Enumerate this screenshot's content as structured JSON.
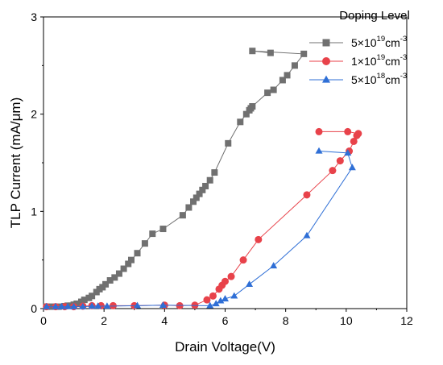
{
  "chart_data": {
    "type": "scatter",
    "xlabel": "Drain Voltage(V)",
    "ylabel": "TLP Current (mA/μm)",
    "xlim": [
      0,
      12
    ],
    "ylim": [
      0,
      3
    ],
    "x_ticks": [
      "0",
      "2",
      "4",
      "6",
      "8",
      "10",
      "12"
    ],
    "y_ticks": [
      "0",
      "1",
      "2",
      "3"
    ],
    "legend_title": "Doping Level",
    "legend_position": "top-right",
    "grid": false,
    "series": [
      {
        "label_parts": {
          "mant": "5×10",
          "exp": "19",
          "unit": "cm",
          "uexp": "-3"
        },
        "color": "#707070",
        "marker": "square",
        "points": [
          [
            0.1,
            0.02
          ],
          [
            0.3,
            0.02
          ],
          [
            0.5,
            0.02
          ],
          [
            0.7,
            0.025
          ],
          [
            0.8,
            0.03
          ],
          [
            0.9,
            0.03
          ],
          [
            1.0,
            0.04
          ],
          [
            1.1,
            0.05
          ],
          [
            1.25,
            0.07
          ],
          [
            1.35,
            0.09
          ],
          [
            1.5,
            0.11
          ],
          [
            1.6,
            0.13
          ],
          [
            1.75,
            0.17
          ],
          [
            1.85,
            0.2
          ],
          [
            1.95,
            0.22
          ],
          [
            2.05,
            0.25
          ],
          [
            2.2,
            0.29
          ],
          [
            2.35,
            0.32
          ],
          [
            2.5,
            0.36
          ],
          [
            2.65,
            0.41
          ],
          [
            2.8,
            0.46
          ],
          [
            2.9,
            0.5
          ],
          [
            3.1,
            0.57
          ],
          [
            3.35,
            0.67
          ],
          [
            3.6,
            0.77
          ],
          [
            3.95,
            0.82
          ],
          [
            4.6,
            0.96
          ],
          [
            4.8,
            1.04
          ],
          [
            4.95,
            1.1
          ],
          [
            5.05,
            1.14
          ],
          [
            5.15,
            1.18
          ],
          [
            5.25,
            1.22
          ],
          [
            5.35,
            1.26
          ],
          [
            5.5,
            1.32
          ],
          [
            5.65,
            1.4
          ],
          [
            6.1,
            1.7
          ],
          [
            6.5,
            1.92
          ],
          [
            6.7,
            2.0
          ],
          [
            6.8,
            2.04
          ],
          [
            6.85,
            2.06
          ],
          [
            6.9,
            2.08
          ],
          [
            7.4,
            2.22
          ],
          [
            7.6,
            2.25
          ],
          [
            7.9,
            2.35
          ],
          [
            8.05,
            2.4
          ],
          [
            8.3,
            2.5
          ],
          [
            8.6,
            2.62
          ],
          [
            6.9,
            2.65
          ],
          [
            7.5,
            2.63
          ]
        ]
      },
      {
        "label_parts": {
          "mant": "1×10",
          "exp": "19",
          "unit": "cm",
          "uexp": "-3"
        },
        "color": "#e8424a",
        "marker": "circle",
        "points": [
          [
            0.1,
            0.02
          ],
          [
            0.4,
            0.02
          ],
          [
            0.7,
            0.02
          ],
          [
            1.0,
            0.02
          ],
          [
            1.3,
            0.025
          ],
          [
            1.6,
            0.03
          ],
          [
            1.9,
            0.03
          ],
          [
            2.3,
            0.03
          ],
          [
            3.0,
            0.03
          ],
          [
            4.0,
            0.035
          ],
          [
            4.5,
            0.03
          ],
          [
            5.0,
            0.035
          ],
          [
            5.4,
            0.09
          ],
          [
            5.6,
            0.13
          ],
          [
            5.8,
            0.2
          ],
          [
            5.9,
            0.24
          ],
          [
            6.0,
            0.28
          ],
          [
            6.2,
            0.33
          ],
          [
            6.6,
            0.5
          ],
          [
            7.1,
            0.71
          ],
          [
            8.7,
            1.17
          ],
          [
            9.55,
            1.42
          ],
          [
            9.8,
            1.52
          ],
          [
            10.1,
            1.62
          ],
          [
            10.25,
            1.72
          ],
          [
            10.35,
            1.78
          ],
          [
            10.4,
            1.8
          ],
          [
            10.05,
            1.82
          ],
          [
            9.1,
            1.82
          ]
        ]
      },
      {
        "label_parts": {
          "mant": "5×10",
          "exp": "18",
          "unit": "cm",
          "uexp": "-3"
        },
        "color": "#2f6fd6",
        "marker": "triangle",
        "points": [
          [
            0.1,
            0.02
          ],
          [
            0.4,
            0.02
          ],
          [
            0.6,
            0.02
          ],
          [
            0.8,
            0.02
          ],
          [
            1.0,
            0.02
          ],
          [
            1.3,
            0.02
          ],
          [
            1.6,
            0.025
          ],
          [
            1.8,
            0.025
          ],
          [
            2.1,
            0.025
          ],
          [
            3.1,
            0.03
          ],
          [
            3.95,
            0.035
          ],
          [
            5.5,
            0.03
          ],
          [
            5.7,
            0.05
          ],
          [
            5.85,
            0.08
          ],
          [
            6.0,
            0.1
          ],
          [
            6.3,
            0.13
          ],
          [
            6.8,
            0.25
          ],
          [
            7.6,
            0.44
          ],
          [
            8.7,
            0.75
          ],
          [
            10.2,
            1.45
          ],
          [
            10.05,
            1.6
          ],
          [
            9.1,
            1.62
          ]
        ]
      }
    ]
  }
}
